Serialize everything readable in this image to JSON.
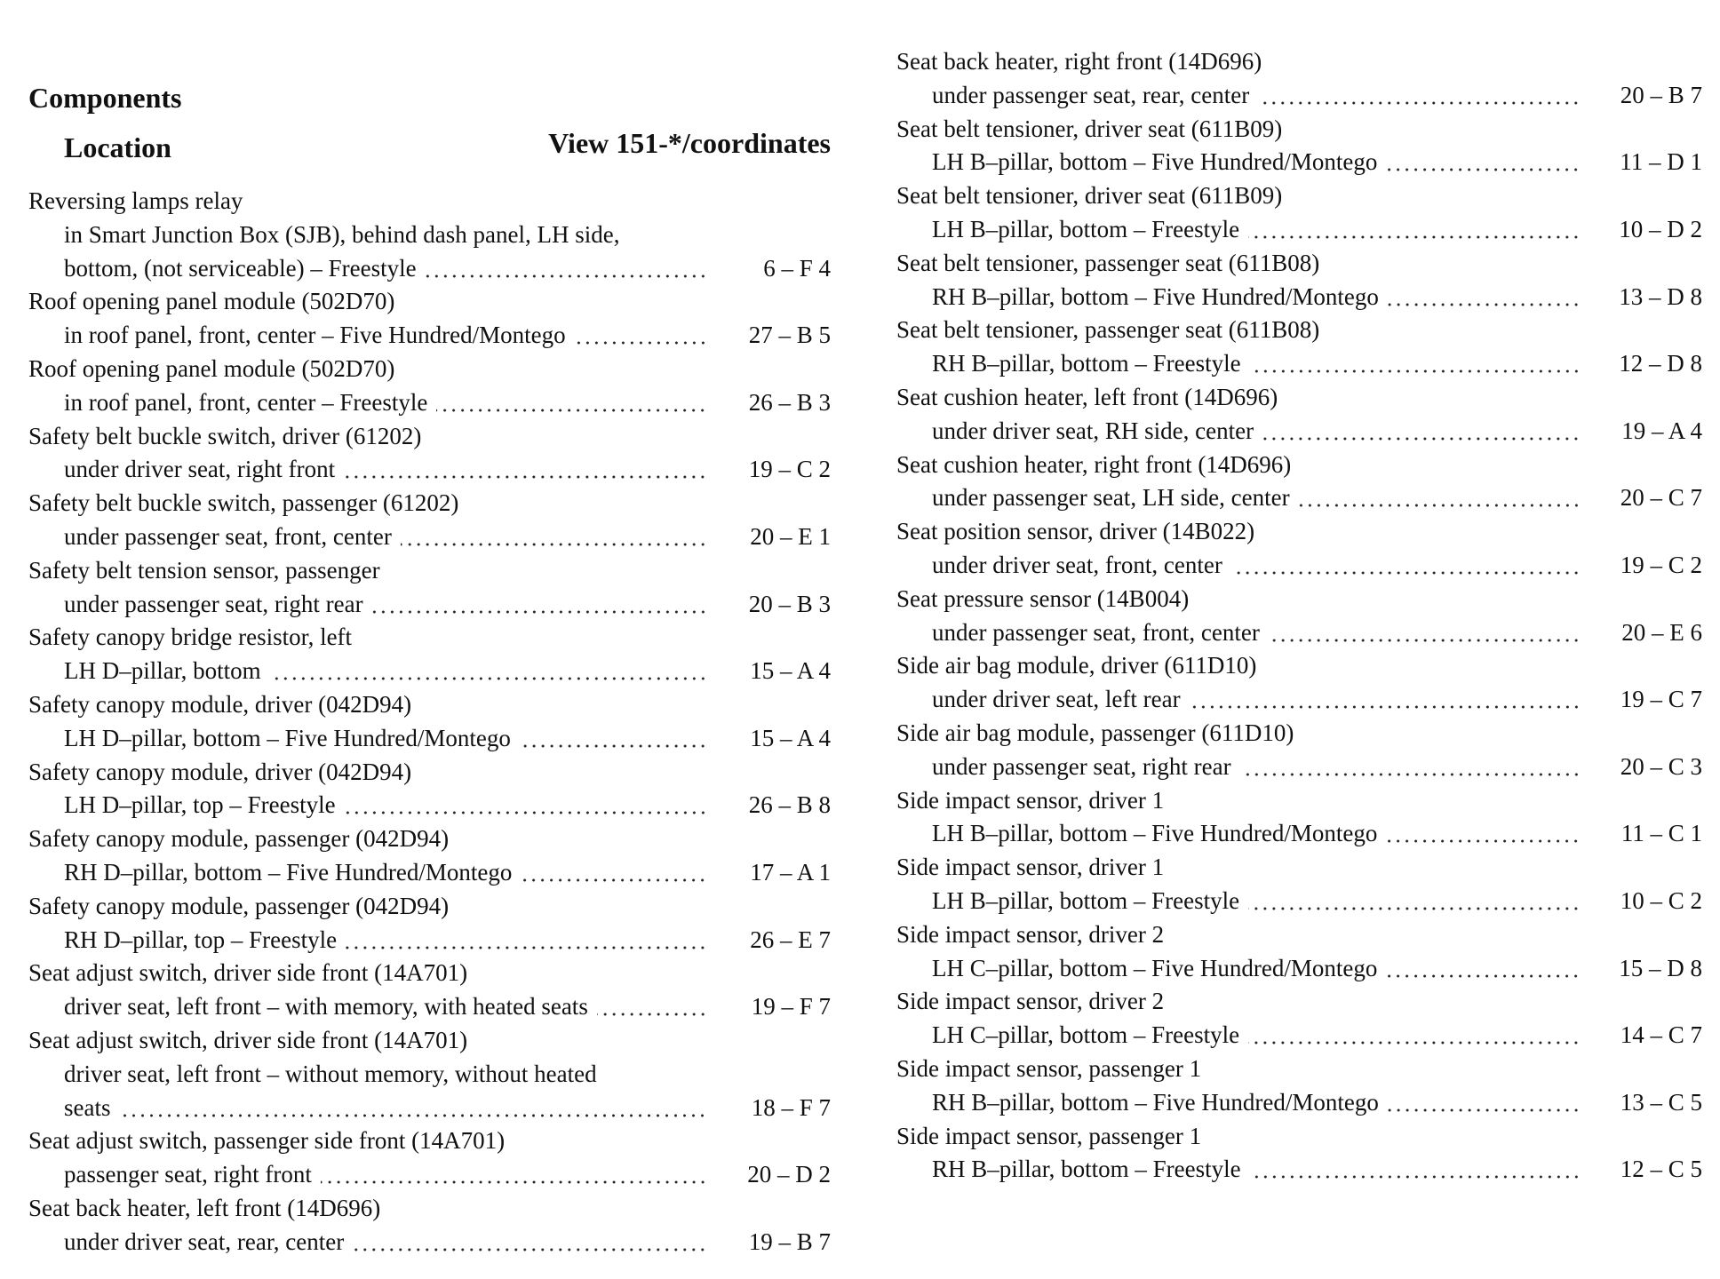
{
  "header": {
    "title": "Components",
    "location_heading": "Location",
    "view_heading": "View 151-*/coordinates"
  },
  "columns": [
    {
      "entries": [
        {
          "component": "Reversing lamps relay",
          "location": [
            "in Smart Junction Box (SJB), behind dash panel, LH side,",
            "bottom, (not serviceable) – Freestyle"
          ],
          "ref": "6 – F 4"
        },
        {
          "component": "Roof opening panel module (502D70)",
          "location": [
            "in roof panel, front, center – Five Hundred/Montego"
          ],
          "ref": "27 – B 5"
        },
        {
          "component": "Roof opening panel module (502D70)",
          "location": [
            "in roof panel, front, center – Freestyle"
          ],
          "ref": "26 – B 3"
        },
        {
          "component": "Safety belt buckle switch, driver (61202)",
          "location": [
            "under driver seat, right front"
          ],
          "ref": "19 – C 2"
        },
        {
          "component": "Safety belt buckle switch, passenger (61202)",
          "location": [
            "under passenger seat, front, center"
          ],
          "ref": "20 – E 1"
        },
        {
          "component": "Safety belt tension sensor, passenger",
          "location": [
            "under passenger seat, right rear"
          ],
          "ref": "20 – B 3"
        },
        {
          "component": "Safety canopy bridge resistor, left",
          "location": [
            "LH D–pillar, bottom"
          ],
          "ref": "15 – A 4"
        },
        {
          "component": "Safety canopy module, driver (042D94)",
          "location": [
            "LH D–pillar, bottom – Five Hundred/Montego"
          ],
          "ref": "15 – A 4"
        },
        {
          "component": "Safety canopy module, driver (042D94)",
          "location": [
            "LH D–pillar, top – Freestyle"
          ],
          "ref": "26 – B 8"
        },
        {
          "component": "Safety canopy module, passenger (042D94)",
          "location": [
            "RH D–pillar, bottom – Five Hundred/Montego"
          ],
          "ref": "17 – A 1"
        },
        {
          "component": "Safety canopy module, passenger (042D94)",
          "location": [
            "RH D–pillar, top – Freestyle"
          ],
          "ref": "26 – E 7"
        },
        {
          "component": "Seat adjust switch, driver side front (14A701)",
          "location": [
            "driver seat, left front – with memory, with heated seats"
          ],
          "ref": "19 – F 7"
        },
        {
          "component": "Seat adjust switch, driver side front (14A701)",
          "location": [
            "driver seat, left front – without memory, without heated",
            "seats"
          ],
          "ref": "18 – F 7"
        },
        {
          "component": "Seat adjust switch, passenger side front (14A701)",
          "location": [
            "passenger seat, right front"
          ],
          "ref": "20 – D 2"
        },
        {
          "component": "Seat back heater, left front (14D696)",
          "location": [
            "under driver seat, rear, center"
          ],
          "ref": "19 – B 7"
        }
      ]
    },
    {
      "entries": [
        {
          "component": "Seat back heater, right front (14D696)",
          "location": [
            "under passenger seat, rear, center"
          ],
          "ref": "20 – B 7"
        },
        {
          "component": "Seat belt tensioner, driver seat (611B09)",
          "location": [
            "LH B–pillar, bottom – Five Hundred/Montego"
          ],
          "ref": "11 – D 1"
        },
        {
          "component": "Seat belt tensioner, driver seat (611B09)",
          "location": [
            "LH B–pillar, bottom – Freestyle"
          ],
          "ref": "10 – D 2"
        },
        {
          "component": "Seat belt tensioner, passenger seat (611B08)",
          "location": [
            "RH B–pillar, bottom – Five Hundred/Montego"
          ],
          "ref": "13 – D 8"
        },
        {
          "component": "Seat belt tensioner, passenger seat (611B08)",
          "location": [
            "RH B–pillar, bottom – Freestyle"
          ],
          "ref": "12 – D 8"
        },
        {
          "component": "Seat cushion heater, left front (14D696)",
          "location": [
            "under driver seat, RH side, center"
          ],
          "ref": "19 – A 4"
        },
        {
          "component": "Seat cushion heater, right front (14D696)",
          "location": [
            "under passenger seat, LH side, center"
          ],
          "ref": "20 – C 7"
        },
        {
          "component": "Seat position sensor, driver (14B022)",
          "location": [
            "under driver seat, front, center"
          ],
          "ref": "19 – C 2"
        },
        {
          "component": "Seat pressure sensor (14B004)",
          "location": [
            "under passenger seat, front, center"
          ],
          "ref": "20 – E 6"
        },
        {
          "component": "Side air bag module, driver (611D10)",
          "location": [
            "under driver seat, left rear"
          ],
          "ref": "19 – C 7"
        },
        {
          "component": "Side air bag module, passenger (611D10)",
          "location": [
            "under passenger seat, right rear"
          ],
          "ref": "20 – C 3"
        },
        {
          "component": "Side impact sensor, driver 1",
          "location": [
            "LH B–pillar, bottom – Five Hundred/Montego"
          ],
          "ref": "11 – C 1"
        },
        {
          "component": "Side impact sensor, driver 1",
          "location": [
            "LH B–pillar, bottom – Freestyle"
          ],
          "ref": "10 – C 2"
        },
        {
          "component": "Side impact sensor, driver 2",
          "location": [
            "LH C–pillar, bottom – Five Hundred/Montego"
          ],
          "ref": "15 – D 8"
        },
        {
          "component": "Side impact sensor, driver 2",
          "location": [
            "LH C–pillar, bottom – Freestyle"
          ],
          "ref": "14 – C 7"
        },
        {
          "component": "Side impact sensor, passenger 1",
          "location": [
            "RH B–pillar, bottom – Five Hundred/Montego"
          ],
          "ref": "13 – C 5"
        },
        {
          "component": "Side impact sensor, passenger 1",
          "location": [
            "RH B–pillar, bottom – Freestyle"
          ],
          "ref": "12 – C 5"
        }
      ]
    }
  ]
}
